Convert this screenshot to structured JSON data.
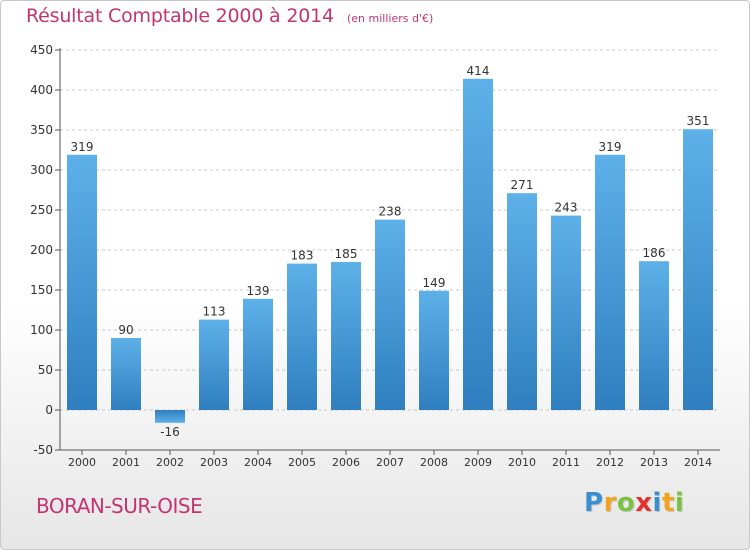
{
  "header": {
    "title": "Résultat Comptable 2000 à 2014",
    "subtitle": "(en milliers d'€)"
  },
  "footer": {
    "place": "BORAN-SUR-OISE",
    "logo": {
      "letters": [
        "P",
        "r",
        "o",
        "x",
        "i",
        "t",
        "i"
      ],
      "colors": [
        "#3a8fd0",
        "#f2a21c",
        "#7cc242",
        "#e2322e",
        "#3a8fd0",
        "#f2a21c",
        "#7cc242"
      ]
    }
  },
  "colors": {
    "bar_light": "#5eb0e8",
    "bar_dark": "#2f7fc0",
    "grid": "#c8c8c8",
    "title": "#c4356e"
  },
  "chart_data": {
    "type": "bar",
    "categories": [
      "2000",
      "2001",
      "2002",
      "2003",
      "2004",
      "2005",
      "2006",
      "2007",
      "2008",
      "2009",
      "2010",
      "2011",
      "2012",
      "2013",
      "2014"
    ],
    "values": [
      319,
      90,
      -16,
      113,
      139,
      183,
      185,
      238,
      149,
      414,
      271,
      243,
      319,
      186,
      351
    ],
    "value_labels": [
      "319",
      "90",
      "-16",
      "113",
      "139",
      "183",
      "185",
      "238",
      "149",
      "414",
      "271",
      "243",
      "319",
      "186",
      "351"
    ],
    "yticks": [
      -50,
      0,
      50,
      100,
      150,
      200,
      250,
      300,
      350,
      400,
      450
    ],
    "ylim": [
      -50,
      450
    ],
    "grid": true
  }
}
